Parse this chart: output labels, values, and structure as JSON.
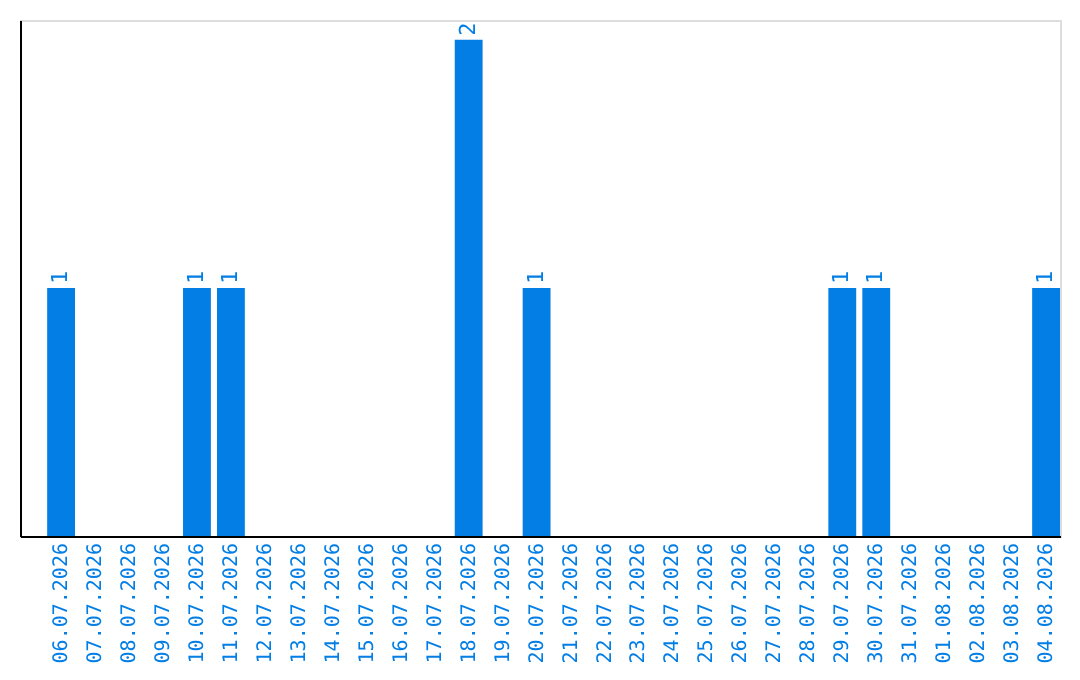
{
  "chart_data": {
    "type": "bar",
    "categories": [
      "06.07.2026",
      "07.07.2026",
      "08.07.2026",
      "09.07.2026",
      "10.07.2026",
      "11.07.2026",
      "12.07.2026",
      "13.07.2026",
      "14.07.2026",
      "15.07.2026",
      "16.07.2026",
      "17.07.2026",
      "18.07.2026",
      "19.07.2026",
      "20.07.2026",
      "21.07.2026",
      "22.07.2026",
      "23.07.2026",
      "24.07.2026",
      "25.07.2026",
      "26.07.2026",
      "27.07.2026",
      "28.07.2026",
      "29.07.2026",
      "30.07.2026",
      "31.07.2026",
      "01.08.2026",
      "02.08.2026",
      "03.08.2026",
      "04.08.2026"
    ],
    "values": [
      1,
      0,
      0,
      0,
      1,
      1,
      0,
      0,
      0,
      0,
      0,
      0,
      2,
      0,
      1,
      0,
      0,
      0,
      0,
      0,
      0,
      0,
      0,
      1,
      1,
      0,
      0,
      0,
      0,
      1
    ],
    "value_labels": [
      "1",
      null,
      null,
      null,
      "1",
      "1",
      null,
      null,
      null,
      null,
      null,
      null,
      "2",
      null,
      "1",
      null,
      null,
      null,
      null,
      null,
      null,
      null,
      null,
      "1",
      "1",
      null,
      null,
      null,
      null,
      "1"
    ],
    "color": "#037ee5",
    "ylim": [
      0,
      2.08
    ],
    "tick_labels": "x",
    "grid": false
  }
}
